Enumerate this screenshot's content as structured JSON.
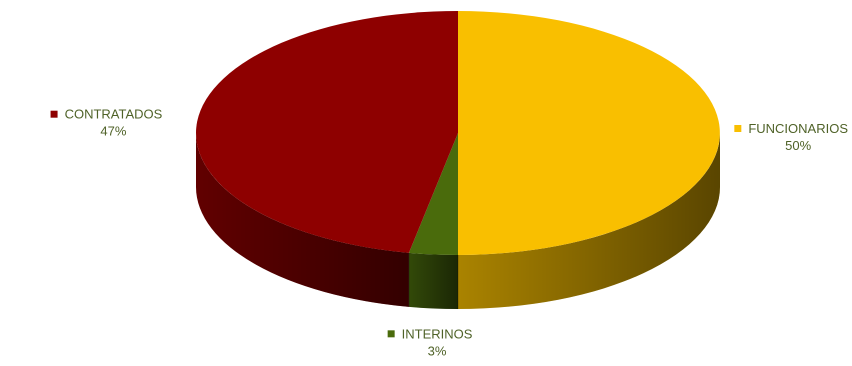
{
  "chart_data": {
    "type": "pie",
    "style": "3d",
    "categories": [
      "FUNCIONARIOS",
      "INTERINOS",
      "CONTRATADOS"
    ],
    "values": [
      50,
      3,
      47
    ],
    "value_labels": [
      "50%",
      "3%",
      "47%"
    ],
    "colors": [
      "#f9bf00",
      "#4a6b0c",
      "#8e0000"
    ],
    "label_color": "#4f6228",
    "legend": "none"
  }
}
